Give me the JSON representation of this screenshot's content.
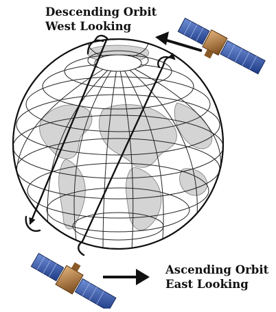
{
  "labels": {
    "descending": {
      "line1": "Descending Orbit",
      "line2": "West Looking"
    },
    "ascending": {
      "line1": "Ascending Orbit",
      "line2": "East Looking"
    }
  },
  "colors": {
    "ink": "#111111",
    "land": "#d4d4d4",
    "ocean": "#ffffff",
    "panel": "#2b4fa3",
    "panel_light": "#6f8fd6",
    "satellite_body": "#b07838"
  },
  "icons": [
    "globe-icon",
    "satellite-icon",
    "arrow-icon"
  ]
}
